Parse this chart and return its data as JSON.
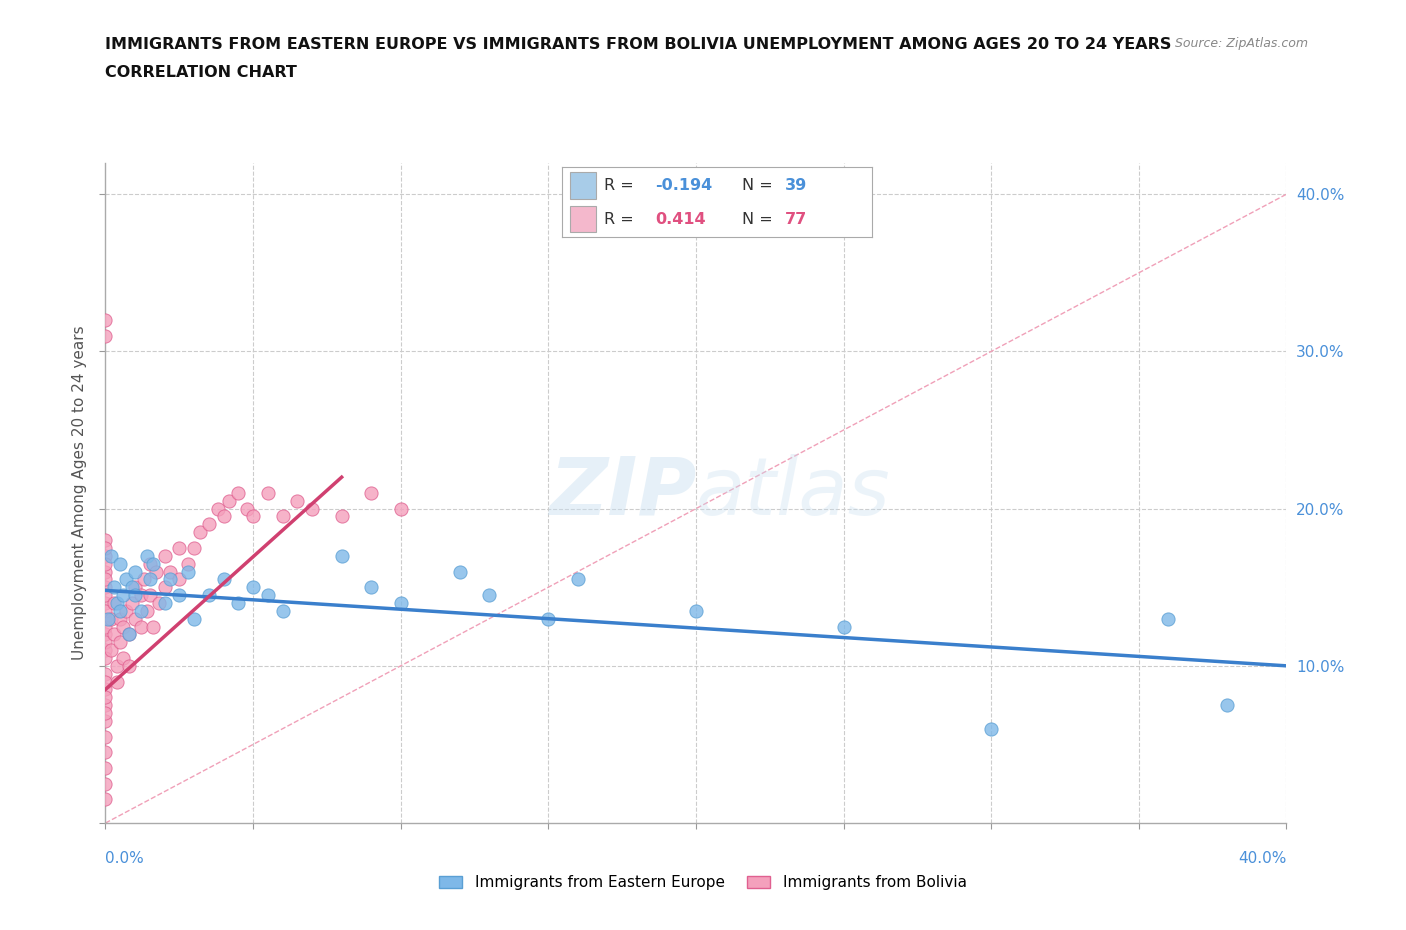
{
  "title_line1": "IMMIGRANTS FROM EASTERN EUROPE VS IMMIGRANTS FROM BOLIVIA UNEMPLOYMENT AMONG AGES 20 TO 24 YEARS",
  "title_line2": "CORRELATION CHART",
  "source": "Source: ZipAtlas.com",
  "ylabel": "Unemployment Among Ages 20 to 24 years",
  "watermark_text": "ZIPatlas",
  "xlim": [
    0.0,
    0.4
  ],
  "ylim": [
    0.0,
    0.42
  ],
  "background_color": "#ffffff",
  "grid_color": "#cccccc",
  "ee_color": "#7eb8e8",
  "ee_edge": "#5a9fd4",
  "bo_color": "#f4a0bc",
  "bo_edge": "#e06090",
  "trendline_ee_color": "#3a7fcc",
  "trendline_bo_color": "#d04070",
  "diagonal_color": "#f0a0b8",
  "legend_box_color": "#e8f0f8",
  "legend_ee_rect": "#a8cce8",
  "legend_bo_rect": "#f4b8cc",
  "ee_R": "-0.194",
  "ee_N": "39",
  "bo_R": "0.414",
  "bo_N": "77",
  "ee_x": [
    0.001,
    0.002,
    0.003,
    0.004,
    0.005,
    0.005,
    0.006,
    0.007,
    0.008,
    0.009,
    0.01,
    0.01,
    0.012,
    0.014,
    0.015,
    0.016,
    0.02,
    0.022,
    0.025,
    0.028,
    0.03,
    0.035,
    0.04,
    0.045,
    0.05,
    0.055,
    0.06,
    0.08,
    0.09,
    0.1,
    0.12,
    0.13,
    0.15,
    0.16,
    0.2,
    0.25,
    0.3,
    0.36,
    0.38
  ],
  "ee_y": [
    0.13,
    0.17,
    0.15,
    0.14,
    0.135,
    0.165,
    0.145,
    0.155,
    0.12,
    0.15,
    0.16,
    0.145,
    0.135,
    0.17,
    0.155,
    0.165,
    0.14,
    0.155,
    0.145,
    0.16,
    0.13,
    0.145,
    0.155,
    0.14,
    0.15,
    0.145,
    0.135,
    0.17,
    0.15,
    0.14,
    0.16,
    0.145,
    0.13,
    0.155,
    0.135,
    0.125,
    0.06,
    0.13,
    0.075
  ],
  "bo_x": [
    0.0,
    0.0,
    0.0,
    0.0,
    0.0,
    0.0,
    0.0,
    0.0,
    0.0,
    0.0,
    0.0,
    0.0,
    0.0,
    0.0,
    0.0,
    0.0,
    0.0,
    0.0,
    0.0,
    0.0,
    0.0,
    0.0,
    0.0,
    0.0,
    0.0,
    0.0,
    0.0,
    0.0,
    0.0,
    0.0,
    0.002,
    0.002,
    0.003,
    0.003,
    0.004,
    0.004,
    0.005,
    0.005,
    0.006,
    0.006,
    0.007,
    0.008,
    0.008,
    0.009,
    0.01,
    0.01,
    0.012,
    0.012,
    0.013,
    0.014,
    0.015,
    0.015,
    0.016,
    0.017,
    0.018,
    0.02,
    0.02,
    0.022,
    0.025,
    0.025,
    0.028,
    0.03,
    0.032,
    0.035,
    0.038,
    0.04,
    0.042,
    0.045,
    0.048,
    0.05,
    0.055,
    0.06,
    0.065,
    0.07,
    0.08,
    0.09,
    0.1
  ],
  "bo_y": [
    0.13,
    0.14,
    0.15,
    0.12,
    0.11,
    0.16,
    0.135,
    0.145,
    0.125,
    0.115,
    0.155,
    0.17,
    0.18,
    0.165,
    0.175,
    0.095,
    0.085,
    0.075,
    0.065,
    0.055,
    0.045,
    0.035,
    0.025,
    0.015,
    0.32,
    0.31,
    0.105,
    0.09,
    0.08,
    0.07,
    0.13,
    0.11,
    0.14,
    0.12,
    0.1,
    0.09,
    0.13,
    0.115,
    0.125,
    0.105,
    0.135,
    0.12,
    0.1,
    0.14,
    0.15,
    0.13,
    0.145,
    0.125,
    0.155,
    0.135,
    0.165,
    0.145,
    0.125,
    0.16,
    0.14,
    0.17,
    0.15,
    0.16,
    0.175,
    0.155,
    0.165,
    0.175,
    0.185,
    0.19,
    0.2,
    0.195,
    0.205,
    0.21,
    0.2,
    0.195,
    0.21,
    0.195,
    0.205,
    0.2,
    0.195,
    0.21,
    0.2
  ],
  "ee_trend_x": [
    0.0,
    0.4
  ],
  "ee_trend_y": [
    0.148,
    0.1
  ],
  "bo_trend_x": [
    0.0,
    0.08
  ],
  "bo_trend_y": [
    0.085,
    0.22
  ]
}
